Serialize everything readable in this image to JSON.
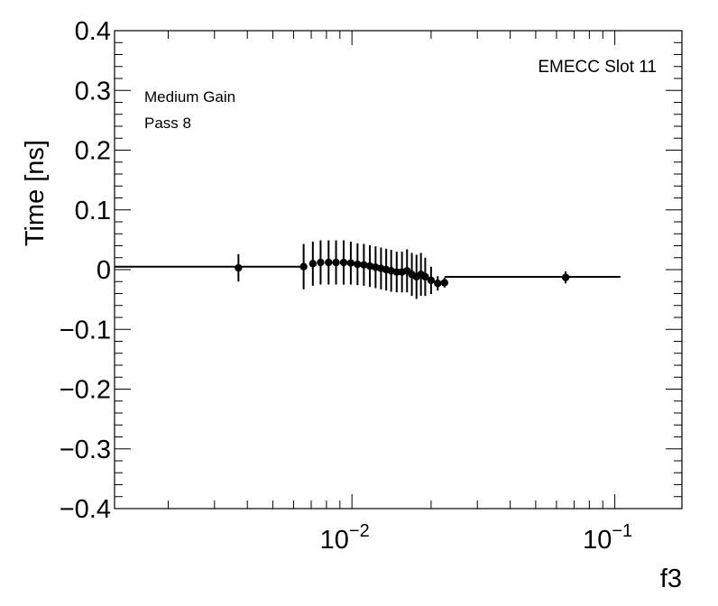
{
  "chart_data": {
    "type": "scatter",
    "xlabel": "f3",
    "ylabel": "Time [ns]",
    "x_scale": "log",
    "xlim": [
      0.00125,
      0.18
    ],
    "ylim": [
      -0.4,
      0.4
    ],
    "y_ticks": [
      -0.4,
      -0.3,
      -0.2,
      -0.1,
      0,
      0.1,
      0.2,
      0.3,
      0.4
    ],
    "y_tick_labels": [
      "−0.4",
      "−0.3",
      "−0.2",
      "−0.1",
      "0",
      "0.1",
      "0.2",
      "0.3",
      "0.4"
    ],
    "x_ticks": [
      0.01,
      0.1
    ],
    "x_tick_labels": [
      {
        "base": "10",
        "exp": "−2"
      },
      {
        "base": "10",
        "exp": "−1"
      }
    ],
    "annotations": {
      "slot": "EMECC Slot 11",
      "gain": "Medium Gain",
      "pass": "Pass 8"
    },
    "points": [
      {
        "x": 0.0037,
        "y": 0.003,
        "err": 0.023
      },
      {
        "x": 0.00655,
        "y": 0.005,
        "err": 0.038
      },
      {
        "x": 0.0071,
        "y": 0.01,
        "err": 0.037
      },
      {
        "x": 0.0076,
        "y": 0.012,
        "err": 0.037
      },
      {
        "x": 0.00815,
        "y": 0.012,
        "err": 0.037
      },
      {
        "x": 0.0087,
        "y": 0.012,
        "err": 0.037
      },
      {
        "x": 0.0093,
        "y": 0.012,
        "err": 0.037
      },
      {
        "x": 0.0099,
        "y": 0.011,
        "err": 0.036
      },
      {
        "x": 0.0105,
        "y": 0.009,
        "err": 0.035
      },
      {
        "x": 0.0111,
        "y": 0.008,
        "err": 0.035
      },
      {
        "x": 0.0117,
        "y": 0.006,
        "err": 0.035
      },
      {
        "x": 0.0123,
        "y": 0.004,
        "err": 0.035
      },
      {
        "x": 0.0129,
        "y": 0.002,
        "err": 0.035
      },
      {
        "x": 0.0135,
        "y": 0.0,
        "err": 0.035
      },
      {
        "x": 0.0141,
        "y": -0.002,
        "err": 0.035
      },
      {
        "x": 0.0148,
        "y": -0.004,
        "err": 0.034
      },
      {
        "x": 0.0155,
        "y": -0.004,
        "err": 0.034
      },
      {
        "x": 0.0162,
        "y": -0.002,
        "err": 0.036
      },
      {
        "x": 0.0169,
        "y": -0.008,
        "err": 0.036
      },
      {
        "x": 0.0176,
        "y": -0.012,
        "err": 0.037
      },
      {
        "x": 0.0183,
        "y": -0.008,
        "err": 0.036
      },
      {
        "x": 0.019,
        "y": -0.012,
        "err": 0.032
      },
      {
        "x": 0.02,
        "y": -0.018,
        "err": 0.023
      },
      {
        "x": 0.0212,
        "y": -0.023,
        "err": 0.012
      },
      {
        "x": 0.0225,
        "y": -0.022,
        "err": 0.008
      },
      {
        "x": 0.065,
        "y": -0.013,
        "err": 0.01
      }
    ],
    "fit_segments": [
      {
        "x": [
          0.00125,
          0.00655
        ],
        "y": 0.005
      },
      {
        "x": [
          0.0225,
          0.105
        ],
        "y": -0.012
      }
    ]
  }
}
